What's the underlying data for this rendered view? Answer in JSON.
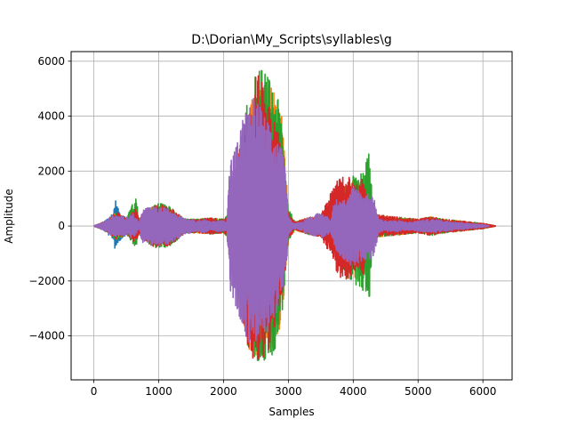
{
  "chart_data": {
    "type": "line",
    "title": "D:\\Dorian\\My_Scripts\\syllables\\g",
    "xlabel": "Samples",
    "ylabel": "Amplitude",
    "xlim": [
      -350,
      6450
    ],
    "ylim": [
      -5600,
      6350
    ],
    "x_ticks": [
      0,
      1000,
      2000,
      3000,
      4000,
      5000,
      6000
    ],
    "y_ticks": [
      -4000,
      -2000,
      0,
      2000,
      4000,
      6000
    ],
    "x_tick_labels": [
      "0",
      "1000",
      "2000",
      "3000",
      "4000",
      "5000",
      "6000"
    ],
    "y_tick_labels": [
      "−4000",
      "−2000",
      "0",
      "2000",
      "4000",
      "6000"
    ],
    "grid": true,
    "legend": "none",
    "series": [
      {
        "color": "#1f77b4",
        "envelope": {
          "x": [
            0,
            150,
            300,
            330,
            380,
            500,
            600,
            680,
            760,
            900,
            1000,
            1100,
            1200,
            1300,
            1400,
            1500,
            1600,
            1700,
            1800,
            1900,
            2000,
            2050
          ],
          "upper": [
            0,
            150,
            500,
            1000,
            600,
            300,
            250,
            200,
            500,
            700,
            750,
            700,
            500,
            300,
            200,
            150,
            200,
            250,
            200,
            200,
            200,
            150
          ],
          "lower": [
            0,
            -150,
            -500,
            -900,
            -600,
            -300,
            -250,
            -200,
            -500,
            -700,
            -750,
            -700,
            -500,
            -300,
            -200,
            -150,
            -200,
            -250,
            -200,
            -200,
            -200,
            -150
          ]
        }
      },
      {
        "color": "#ff7f0e",
        "envelope": {
          "x": [
            0,
            200,
            350,
            500,
            650,
            700,
            800,
            1000,
            1200,
            1400,
            1600,
            1800,
            2000,
            2100,
            2200,
            2300,
            2400,
            2500,
            2600,
            2700,
            2800,
            2900,
            3000,
            3100,
            3300,
            3500,
            3700,
            3800,
            3900,
            4000,
            4100,
            4200,
            4300,
            4400,
            4600,
            4800,
            5000,
            5200,
            5400,
            5600,
            5800,
            6000,
            6200
          ],
          "upper": [
            0,
            200,
            500,
            300,
            600,
            250,
            600,
            800,
            650,
            250,
            250,
            300,
            250,
            500,
            2300,
            3600,
            4500,
            5300,
            5600,
            5200,
            4900,
            4400,
            600,
            150,
            300,
            400,
            700,
            1000,
            1600,
            1800,
            1700,
            1600,
            500,
            400,
            350,
            300,
            250,
            350,
            250,
            200,
            150,
            100,
            0
          ],
          "lower": [
            0,
            -200,
            -500,
            -300,
            -600,
            -250,
            -600,
            -800,
            -650,
            -250,
            -250,
            -300,
            -250,
            -500,
            -2300,
            -3600,
            -4600,
            -4900,
            -4800,
            -4700,
            -4400,
            -3600,
            -600,
            -150,
            -300,
            -400,
            -900,
            -1600,
            -1900,
            -2000,
            -1900,
            -1700,
            -500,
            -400,
            -350,
            -300,
            -250,
            -300,
            -250,
            -200,
            -150,
            -100,
            0
          ]
        }
      },
      {
        "color": "#2ca02c",
        "envelope": {
          "x": [
            0,
            200,
            350,
            500,
            650,
            700,
            800,
            1000,
            1200,
            1400,
            1600,
            1800,
            2000,
            2100,
            2200,
            2300,
            2400,
            2500,
            2600,
            2700,
            2800,
            2900,
            3000,
            3100,
            3300,
            3500,
            3700,
            3800,
            3900,
            4000,
            4100,
            4200,
            4250,
            4300,
            4400,
            4600,
            4800,
            5000,
            5200,
            5400,
            5600,
            5800,
            6000,
            6200
          ],
          "upper": [
            0,
            200,
            500,
            300,
            1100,
            250,
            600,
            850,
            700,
            250,
            250,
            300,
            250,
            500,
            2400,
            3800,
            4800,
            5600,
            5800,
            5400,
            5000,
            4000,
            700,
            150,
            300,
            400,
            800,
            1100,
            1700,
            1900,
            1800,
            2400,
            2900,
            600,
            400,
            350,
            300,
            250,
            350,
            250,
            200,
            150,
            100,
            0
          ],
          "lower": [
            0,
            -200,
            -500,
            -300,
            -800,
            -250,
            -600,
            -850,
            -700,
            -250,
            -250,
            -300,
            -250,
            -500,
            -2400,
            -3700,
            -4700,
            -5100,
            -5000,
            -4900,
            -4500,
            -3300,
            -600,
            -150,
            -300,
            -400,
            -900,
            -1500,
            -1900,
            -2100,
            -2200,
            -2600,
            -2700,
            -500,
            -400,
            -350,
            -300,
            -250,
            -350,
            -250,
            -200,
            -150,
            -100,
            0
          ]
        }
      },
      {
        "color": "#d62728",
        "envelope": {
          "x": [
            0,
            200,
            350,
            500,
            650,
            700,
            800,
            1000,
            1200,
            1400,
            1600,
            1800,
            2000,
            2100,
            2200,
            2300,
            2400,
            2500,
            2600,
            2700,
            2800,
            2900,
            3000,
            3100,
            3300,
            3500,
            3700,
            3750,
            3800,
            3900,
            4000,
            4100,
            4150,
            4200,
            4300,
            4400,
            4600,
            4800,
            5000,
            5200,
            5400,
            5600,
            5800,
            6000,
            6200
          ],
          "upper": [
            0,
            200,
            500,
            300,
            650,
            250,
            600,
            800,
            650,
            250,
            250,
            300,
            250,
            500,
            2300,
            3500,
            4700,
            5500,
            5500,
            5000,
            4000,
            2900,
            500,
            150,
            300,
            400,
            1500,
            2000,
            1700,
            1900,
            1700,
            1500,
            2100,
            1200,
            500,
            400,
            350,
            300,
            250,
            350,
            250,
            200,
            150,
            100,
            0
          ],
          "lower": [
            0,
            -200,
            -500,
            -300,
            -650,
            -250,
            -600,
            -850,
            -650,
            -250,
            -250,
            -300,
            -250,
            -500,
            -2300,
            -3600,
            -4700,
            -5000,
            -4800,
            -4600,
            -3800,
            -2700,
            -500,
            -150,
            -300,
            -400,
            -1300,
            -1700,
            -1900,
            -2000,
            -1800,
            -1500,
            -1900,
            -1000,
            -500,
            -400,
            -350,
            -300,
            -250,
            -350,
            -250,
            -200,
            -150,
            -100,
            0
          ]
        }
      },
      {
        "color": "#9467bd",
        "envelope": {
          "x": [
            0,
            150,
            300,
            400,
            500,
            600,
            650,
            700,
            750,
            800,
            900,
            1000,
            1100,
            1200,
            1300,
            1400,
            1500,
            1600,
            1700,
            1800,
            1900,
            2000,
            2050,
            2100,
            2200,
            2300,
            2400,
            2500,
            2600,
            2700,
            2800,
            2900,
            2950,
            3000,
            3050,
            3100,
            3200,
            3300,
            3400,
            3500,
            3600,
            3650,
            3700,
            3800,
            3900,
            4000,
            4050,
            4100,
            4200,
            4300,
            4400,
            4500,
            4600,
            4700,
            4800,
            4900,
            5000,
            5200,
            5400,
            5600,
            5800,
            6000,
            6100
          ],
          "upper": [
            0,
            150,
            400,
            350,
            350,
            450,
            300,
            150,
            600,
            650,
            700,
            700,
            650,
            600,
            450,
            300,
            250,
            200,
            250,
            150,
            200,
            200,
            200,
            2500,
            3000,
            4000,
            4500,
            4800,
            4200,
            3700,
            3200,
            2800,
            2100,
            500,
            150,
            100,
            150,
            300,
            400,
            500,
            350,
            200,
            800,
            1200,
            900,
            1500,
            1500,
            1300,
            1200,
            1200,
            250,
            200,
            200,
            200,
            150,
            150,
            200,
            250,
            200,
            150,
            100,
            50,
            0
          ],
          "lower": [
            0,
            -150,
            -400,
            -350,
            -350,
            -450,
            -300,
            -150,
            -600,
            -650,
            -700,
            -750,
            -700,
            -600,
            -450,
            -300,
            -250,
            -200,
            -250,
            -150,
            -200,
            -200,
            -200,
            -2400,
            -3000,
            -3800,
            -4300,
            -4400,
            -4200,
            -3800,
            -3300,
            -2600,
            -2000,
            -400,
            -150,
            -100,
            -150,
            -300,
            -350,
            -450,
            -350,
            -200,
            -800,
            -1100,
            -1300,
            -1500,
            -1400,
            -1300,
            -1200,
            -1200,
            -250,
            -200,
            -200,
            -200,
            -150,
            -150,
            -200,
            -250,
            -200,
            -150,
            -100,
            -50,
            0
          ]
        }
      }
    ]
  }
}
